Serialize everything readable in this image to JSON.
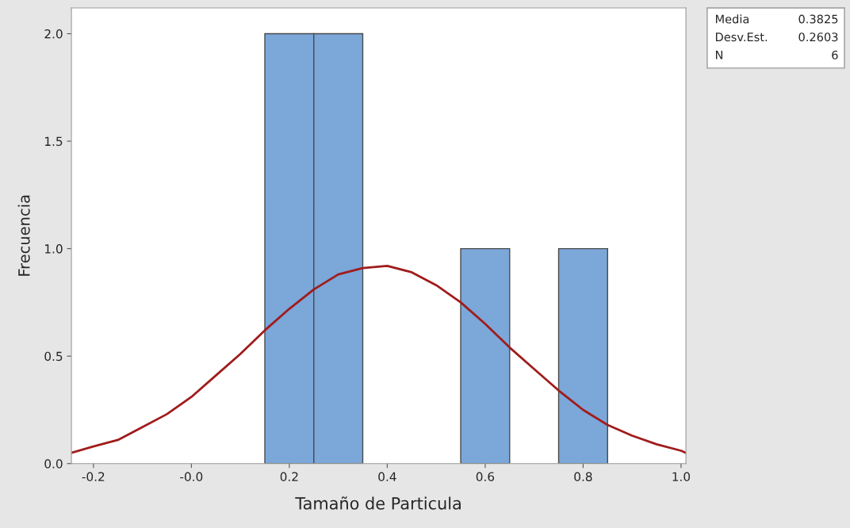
{
  "chart_data": {
    "type": "histogram",
    "xlabel": "Tamaño de Particula",
    "ylabel": "Frecuencia",
    "bins": [
      0.15,
      0.25,
      0.35,
      0.45,
      0.55,
      0.65,
      0.75,
      0.85
    ],
    "values": [
      2,
      2,
      0,
      0,
      1,
      0,
      1
    ],
    "color": "#7ba7d9",
    "series": [
      {
        "type": "line",
        "color": "#a01c1c",
        "x": [
          -0.245,
          -0.2,
          -0.15,
          -0.1,
          -0.05,
          0,
          0.05,
          0.1,
          0.15,
          0.2,
          0.25,
          0.3,
          0.35,
          0.4,
          0.45,
          0.5,
          0.55,
          0.6,
          0.65,
          0.7,
          0.75,
          0.8,
          0.85,
          0.9,
          0.95,
          1.0,
          1.01
        ],
        "values": [
          0.05,
          0.08,
          0.11,
          0.17,
          0.23,
          0.31,
          0.41,
          0.51,
          0.62,
          0.72,
          0.81,
          0.88,
          0.91,
          0.92,
          0.89,
          0.83,
          0.75,
          0.65,
          0.54,
          0.44,
          0.34,
          0.25,
          0.18,
          0.13,
          0.09,
          0.06,
          0.05
        ]
      }
    ],
    "xlim": [
      -0.245,
      1.01
    ],
    "ylim": [
      0,
      2.12
    ],
    "xticks": [
      -0.2,
      {
        "value": 0,
        "label": "-0.0"
      },
      0.2,
      0.4,
      0.6,
      0.8,
      {
        "value": 1.0,
        "label": "1.0"
      }
    ],
    "yticks": [
      {
        "value": 0,
        "label": "0.0"
      },
      0.5,
      {
        "value": 1.0,
        "label": "1.0"
      },
      1.5,
      {
        "value": 2.0,
        "label": "2.0"
      }
    ],
    "annotations": [
      "Media 0.3825",
      "Desv.Est. 0.2603",
      "N 6"
    ],
    "grid": false,
    "legend": false
  }
}
